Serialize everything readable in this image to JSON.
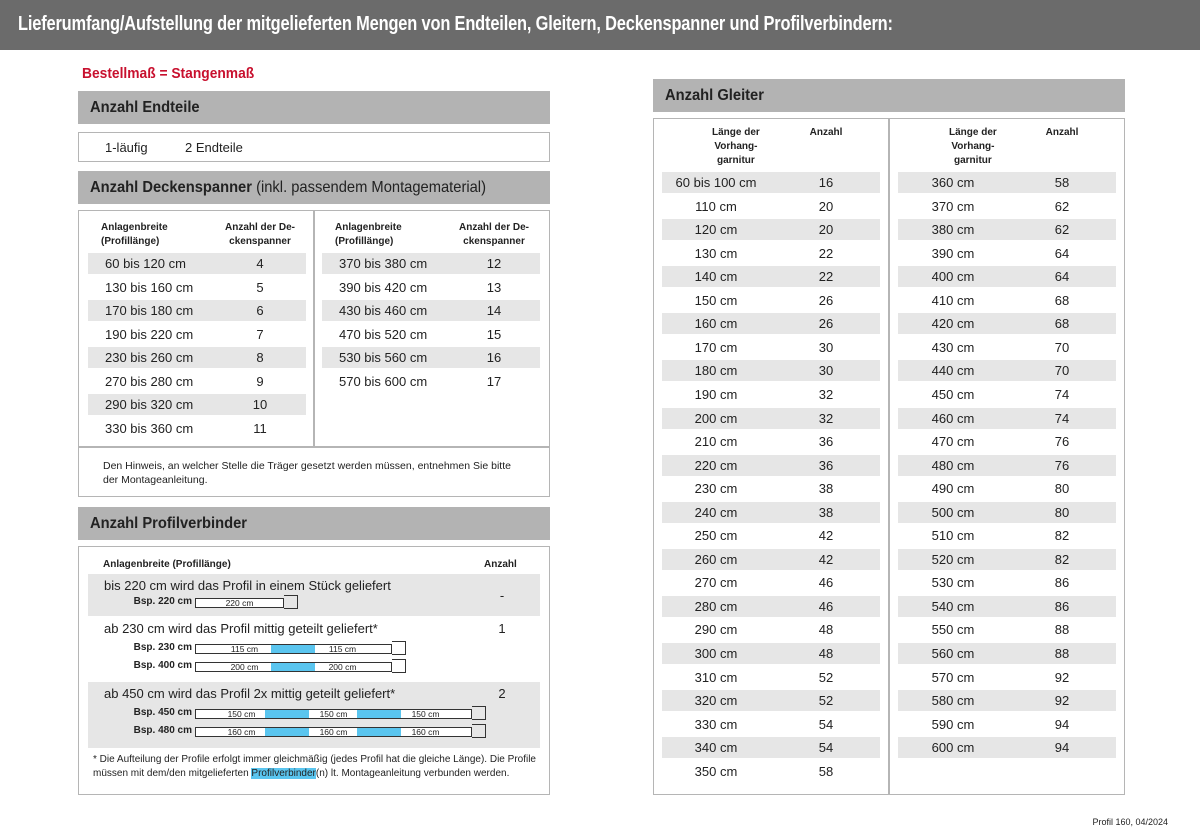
{
  "header": {
    "title": "Lieferumfang/Aufstellung der mitgelieferten Mengen von Endteilen, Gleitern, Deckenspanner und Profilverbindern:"
  },
  "subtitle": "Bestellmaß = Stangenmaß",
  "endteile": {
    "title": "Anzahl Endteile",
    "row": [
      "1-läufig",
      "2 Endteile"
    ]
  },
  "deckenspanner": {
    "title": "Anzahl Deckenspanner",
    "title_note": "(inkl. passendem Montagematerial)",
    "headers": [
      "Anlagenbreite\n(Profillänge)",
      "Anzahl der De-\nckenspanner"
    ],
    "left_rows": [
      [
        "60 bis 120 cm",
        4
      ],
      [
        "130 bis 160 cm",
        5
      ],
      [
        "170 bis 180 cm",
        6
      ],
      [
        "190 bis 220 cm",
        7
      ],
      [
        "230 bis 260 cm",
        8
      ],
      [
        "270 bis 280 cm",
        9
      ],
      [
        "290 bis 320 cm",
        10
      ],
      [
        "330 bis 360 cm",
        11
      ]
    ],
    "right_rows": [
      [
        "370 bis 380 cm",
        12
      ],
      [
        "390 bis 420 cm",
        13
      ],
      [
        "430 bis 460 cm",
        14
      ],
      [
        "470 bis 520 cm",
        15
      ],
      [
        "530 bis 560 cm",
        16
      ],
      [
        "570 bis 600 cm",
        17
      ]
    ],
    "note": "Den Hinweis, an welcher Stelle die Träger gesetzt werden müssen, entnehmen Sie bitte\nder Montageanleitung."
  },
  "profilverbinder": {
    "title": "Anzahl Profilverbinder",
    "headers": [
      "Anlagenbreite (Profillänge)",
      "Anzahl"
    ],
    "groups": [
      {
        "text": "bis 220 cm wird das Profil in einem Stück geliefert",
        "count": "-",
        "examples": [
          {
            "label": "Bsp. 220 cm",
            "segments": [
              "220 cm"
            ]
          }
        ]
      },
      {
        "text": "ab 230 cm wird das Profil mittig geteilt geliefert*",
        "count": 1,
        "examples": [
          {
            "label": "Bsp. 230 cm",
            "segments": [
              "115 cm",
              "115 cm"
            ]
          },
          {
            "label": "Bsp. 400 cm",
            "segments": [
              "200 cm",
              "200 cm"
            ]
          }
        ]
      },
      {
        "text": "ab 450 cm wird das Profil 2x mittig geteilt geliefert*",
        "count": 2,
        "examples": [
          {
            "label": "Bsp. 450 cm",
            "segments": [
              "150 cm",
              "150 cm",
              "150 cm"
            ]
          },
          {
            "label": "Bsp. 480 cm",
            "segments": [
              "160 cm",
              "160 cm",
              "160 cm"
            ]
          }
        ]
      }
    ],
    "note": [
      "* Die Aufteilung der Profile erfolgt immer gleichmäßig (jedes Profil hat die gleiche Länge). Die Profile\nmüssen mit dem/den mitgelieferten ",
      "Profilverbinder",
      "(n) lt. Montageanleitung verbunden werden."
    ]
  },
  "gleiter": {
    "title": "Anzahl Gleiter",
    "headers": [
      "Länge der\nVorhang-\ngarnitur",
      "Anzahl"
    ],
    "left_rows": [
      [
        "60 bis 100 cm",
        16
      ],
      [
        "110 cm",
        20
      ],
      [
        "120 cm",
        20
      ],
      [
        "130 cm",
        22
      ],
      [
        "140 cm",
        22
      ],
      [
        "150 cm",
        26
      ],
      [
        "160 cm",
        26
      ],
      [
        "170 cm",
        30
      ],
      [
        "180 cm",
        30
      ],
      [
        "190 cm",
        32
      ],
      [
        "200 cm",
        32
      ],
      [
        "210 cm",
        36
      ],
      [
        "220 cm",
        36
      ],
      [
        "230 cm",
        38
      ],
      [
        "240 cm",
        38
      ],
      [
        "250 cm",
        42
      ],
      [
        "260 cm",
        42
      ],
      [
        "270 cm",
        46
      ],
      [
        "280 cm",
        46
      ],
      [
        "290 cm",
        48
      ],
      [
        "300 cm",
        48
      ],
      [
        "310 cm",
        52
      ],
      [
        "320 cm",
        52
      ],
      [
        "330 cm",
        54
      ],
      [
        "340 cm",
        54
      ],
      [
        "350 cm",
        58
      ]
    ],
    "right_rows": [
      [
        "360 cm",
        58
      ],
      [
        "370 cm",
        62
      ],
      [
        "380 cm",
        62
      ],
      [
        "390 cm",
        64
      ],
      [
        "400 cm",
        64
      ],
      [
        "410 cm",
        68
      ],
      [
        "420 cm",
        68
      ],
      [
        "430 cm",
        70
      ],
      [
        "440 cm",
        70
      ],
      [
        "450 cm",
        74
      ],
      [
        "460 cm",
        74
      ],
      [
        "470 cm",
        76
      ],
      [
        "480 cm",
        76
      ],
      [
        "490 cm",
        80
      ],
      [
        "500 cm",
        80
      ],
      [
        "510 cm",
        82
      ],
      [
        "520 cm",
        82
      ],
      [
        "530 cm",
        86
      ],
      [
        "540 cm",
        86
      ],
      [
        "550 cm",
        88
      ],
      [
        "560 cm",
        88
      ],
      [
        "570 cm",
        92
      ],
      [
        "580 cm",
        92
      ],
      [
        "590 cm",
        94
      ],
      [
        "600 cm",
        94
      ]
    ]
  },
  "footer": "Profil 160, 04/2024"
}
